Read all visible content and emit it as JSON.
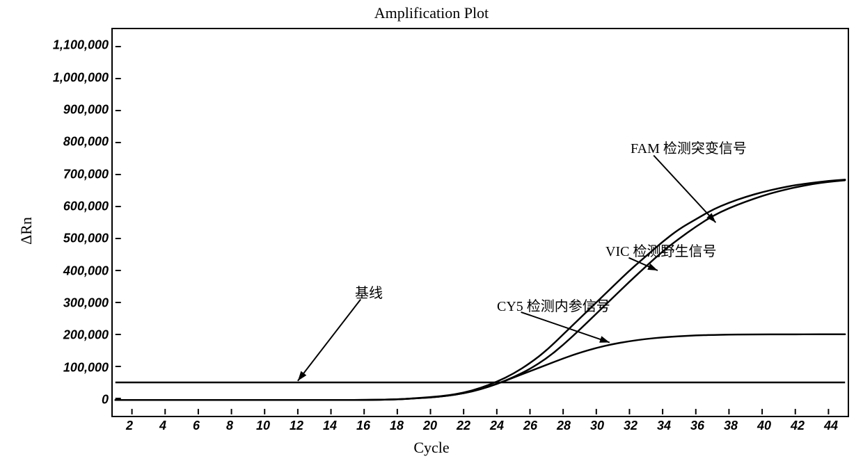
{
  "chart": {
    "type": "line",
    "title": "Amplification Plot",
    "title_fontsize": 22,
    "xlabel": "Cycle",
    "ylabel": "ΔRn",
    "label_fontsize": 22,
    "xlim": [
      1,
      45
    ],
    "ylim": [
      -50000,
      1150000
    ],
    "xtick_start": 2,
    "xtick_step": 2,
    "xtick_end": 44,
    "ytick_labels": [
      "0",
      "100,000",
      "200,000",
      "300,000",
      "400,000",
      "500,000",
      "600,000",
      "700,000",
      "800,000",
      "900,000",
      "1,000,000",
      "1,100,000"
    ],
    "ytick_values": [
      0,
      100000,
      200000,
      300000,
      400000,
      500000,
      600000,
      700000,
      800000,
      900000,
      1000000,
      1100000
    ],
    "tick_fontsize": 18,
    "background_color": "#ffffff",
    "border_color": "#000000",
    "grid": false,
    "line_color": "#000000",
    "line_width": 2.5,
    "threshold": {
      "y": 50000,
      "line_width": 2.5
    },
    "series": [
      {
        "name": "FAM",
        "label_key": "annotations.fam",
        "points": [
          [
            1,
            -5000
          ],
          [
            2,
            -5000
          ],
          [
            4,
            -5000
          ],
          [
            6,
            -5000
          ],
          [
            8,
            -5000
          ],
          [
            10,
            -5000
          ],
          [
            12,
            -5000
          ],
          [
            14,
            -5000
          ],
          [
            16,
            -5000
          ],
          [
            18,
            -3000
          ],
          [
            19,
            500
          ],
          [
            20,
            4000
          ],
          [
            21,
            9000
          ],
          [
            22,
            18000
          ],
          [
            23,
            32000
          ],
          [
            24,
            52000
          ],
          [
            25,
            77000
          ],
          [
            26,
            110000
          ],
          [
            27,
            150000
          ],
          [
            28,
            200000
          ],
          [
            29,
            250000
          ],
          [
            30,
            300000
          ],
          [
            31,
            350000
          ],
          [
            32,
            400000
          ],
          [
            33,
            445000
          ],
          [
            34,
            490000
          ],
          [
            35,
            530000
          ],
          [
            36,
            560000
          ],
          [
            37,
            590000
          ],
          [
            38,
            612000
          ],
          [
            39,
            630000
          ],
          [
            40,
            645000
          ],
          [
            41,
            657000
          ],
          [
            42,
            667000
          ],
          [
            43,
            674000
          ],
          [
            44,
            680000
          ],
          [
            45,
            684000
          ]
        ]
      },
      {
        "name": "VIC",
        "label_key": "annotations.vic",
        "points": [
          [
            1,
            -5000
          ],
          [
            2,
            -5000
          ],
          [
            4,
            -5000
          ],
          [
            6,
            -5000
          ],
          [
            8,
            -5000
          ],
          [
            10,
            -5000
          ],
          [
            12,
            -5000
          ],
          [
            14,
            -5000
          ],
          [
            16,
            -5000
          ],
          [
            18,
            -3000
          ],
          [
            19,
            0
          ],
          [
            20,
            3000
          ],
          [
            21,
            8000
          ],
          [
            22,
            16000
          ],
          [
            23,
            28000
          ],
          [
            24,
            45000
          ],
          [
            25,
            66000
          ],
          [
            26,
            92000
          ],
          [
            27,
            125000
          ],
          [
            28,
            167000
          ],
          [
            29,
            215000
          ],
          [
            30,
            265000
          ],
          [
            31,
            315000
          ],
          [
            32,
            365000
          ],
          [
            33,
            413000
          ],
          [
            34,
            460000
          ],
          [
            35,
            500000
          ],
          [
            36,
            537000
          ],
          [
            37,
            570000
          ],
          [
            38,
            595000
          ],
          [
            39,
            615000
          ],
          [
            40,
            633000
          ],
          [
            41,
            648000
          ],
          [
            42,
            660000
          ],
          [
            43,
            670000
          ],
          [
            44,
            677000
          ],
          [
            45,
            682000
          ]
        ]
      },
      {
        "name": "CY5",
        "label_key": "annotations.cy5",
        "points": [
          [
            1,
            -5000
          ],
          [
            2,
            -5000
          ],
          [
            4,
            -5000
          ],
          [
            6,
            -5000
          ],
          [
            8,
            -5000
          ],
          [
            10,
            -5000
          ],
          [
            12,
            -5000
          ],
          [
            14,
            -5000
          ],
          [
            16,
            -5000
          ],
          [
            18,
            -3000
          ],
          [
            19,
            0
          ],
          [
            20,
            3000
          ],
          [
            21,
            8000
          ],
          [
            22,
            16000
          ],
          [
            23,
            28000
          ],
          [
            24,
            45000
          ],
          [
            25,
            65000
          ],
          [
            26,
            85000
          ],
          [
            27,
            105000
          ],
          [
            28,
            125000
          ],
          [
            29,
            143000
          ],
          [
            30,
            158000
          ],
          [
            31,
            170000
          ],
          [
            32,
            179000
          ],
          [
            33,
            186000
          ],
          [
            34,
            191000
          ],
          [
            35,
            194500
          ],
          [
            36,
            197000
          ],
          [
            37,
            198500
          ],
          [
            38,
            199500
          ],
          [
            39,
            200000
          ],
          [
            40,
            200200
          ],
          [
            41,
            200300
          ],
          [
            42,
            200400
          ],
          [
            43,
            200450
          ],
          [
            44,
            200480
          ],
          [
            45,
            200500
          ]
        ]
      }
    ],
    "annotations": {
      "baseline": "基线",
      "fam": "FAM 检测突变信号",
      "vic": "VIC 检测野生信号",
      "cy5": "CY5 检测内参信号"
    },
    "annotation_positions": {
      "baseline": {
        "text_cycle": 15.5,
        "text_rn": 340000,
        "tip_cycle": 12,
        "tip_rn": 55000
      },
      "fam": {
        "text_cycle": 32,
        "text_rn": 790000,
        "tip_cycle": 37.2,
        "tip_rn": 550000
      },
      "vic": {
        "text_cycle": 30.5,
        "text_rn": 470000,
        "tip_cycle": 33.7,
        "tip_rn": 400000
      },
      "cy5": {
        "text_cycle": 24,
        "text_rn": 300000,
        "tip_cycle": 30.8,
        "tip_rn": 175000
      }
    },
    "arrow_style": {
      "head_len": 14,
      "head_w": 10,
      "line_width": 2
    }
  }
}
